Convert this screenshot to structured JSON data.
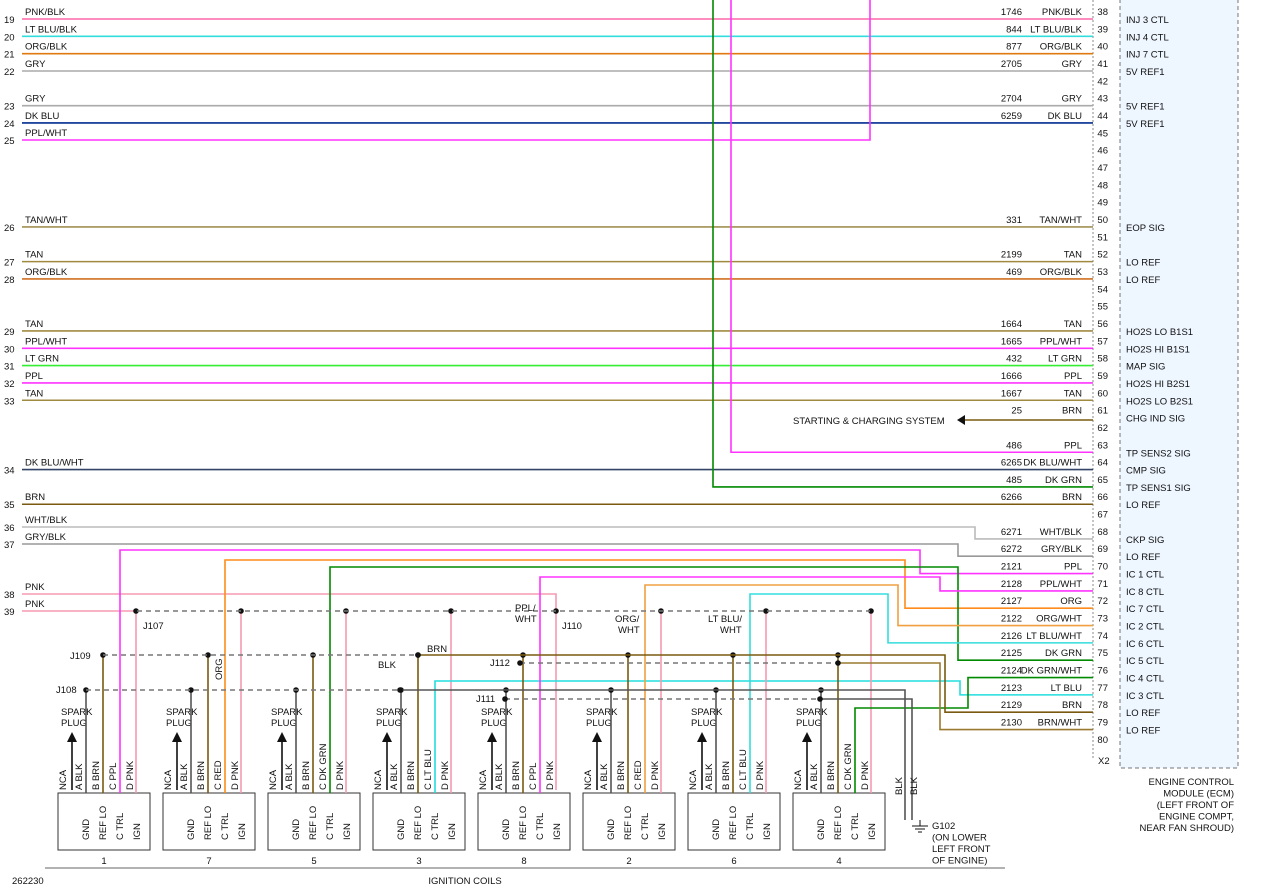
{
  "left_rows": [
    {
      "num": 19,
      "label": "PNK/BLK",
      "color": "#ff66aa"
    },
    {
      "num": 20,
      "label": "LT BLU/BLK",
      "color": "#33dddd"
    },
    {
      "num": 21,
      "label": "ORG/BLK",
      "color": "#e07a10"
    },
    {
      "num": 22,
      "label": "GRY",
      "color": "#aaaaaa"
    },
    {
      "num": 23,
      "label": "GRY",
      "color": "#aaaaaa"
    },
    {
      "num": 24,
      "label": "DK BLU",
      "color": "#002b90"
    },
    {
      "num": 25,
      "label": "PPL/WHT",
      "color": "#ff33ff"
    },
    {
      "num": 26,
      "label": "TAN/WHT",
      "color": "#a09050"
    },
    {
      "num": 27,
      "label": "TAN",
      "color": "#a08a40"
    },
    {
      "num": 28,
      "label": "ORG/BLK",
      "color": "#d07020"
    },
    {
      "num": 29,
      "label": "TAN",
      "color": "#a08a40"
    },
    {
      "num": 30,
      "label": "PPL/WHT",
      "color": "#ff33ff"
    },
    {
      "num": 31,
      "label": "LT GRN",
      "color": "#33ee33"
    },
    {
      "num": 32,
      "label": "PPL",
      "color": "#ff33ff"
    },
    {
      "num": 33,
      "label": "TAN",
      "color": "#a08a40"
    },
    {
      "num": 34,
      "label": "DK BLU/WHT",
      "color": "#334466"
    },
    {
      "num": 35,
      "label": "BRN",
      "color": "#7a5a10"
    },
    {
      "num": 36,
      "label": "WHT/BLK",
      "color": "#bbbbbb"
    },
    {
      "num": 37,
      "label": "GRY/BLK",
      "color": "#999999"
    },
    {
      "num": 38,
      "label": "PNK",
      "color": "#f59ab0"
    },
    {
      "num": 39,
      "label": "PNK",
      "color": "#f59ab0"
    }
  ],
  "ecm_pins": [
    {
      "pin": 38,
      "circuit": 1746,
      "wire": "PNK/BLK",
      "function": "INJ 3 CTL",
      "color": "#ff66aa"
    },
    {
      "pin": 39,
      "circuit": 844,
      "wire": "LT BLU/BLK",
      "function": "INJ 4 CTL",
      "color": "#33dddd"
    },
    {
      "pin": 40,
      "circuit": 877,
      "wire": "ORG/BLK",
      "function": "INJ 7 CTL",
      "color": "#e07a10"
    },
    {
      "pin": 41,
      "circuit": 2705,
      "wire": "GRY",
      "function": "5V REF1",
      "color": "#aaaaaa"
    },
    {
      "pin": 42
    },
    {
      "pin": 43,
      "circuit": 2704,
      "wire": "GRY",
      "function": "5V REF1",
      "color": "#aaaaaa"
    },
    {
      "pin": 44,
      "circuit": 6259,
      "wire": "DK BLU",
      "function": "5V REF1",
      "color": "#002b90"
    },
    {
      "pin": 45
    },
    {
      "pin": 46
    },
    {
      "pin": 47
    },
    {
      "pin": 48
    },
    {
      "pin": 49
    },
    {
      "pin": 50,
      "circuit": 331,
      "wire": "TAN/WHT",
      "function": "EOP SIG",
      "color": "#a09050"
    },
    {
      "pin": 51
    },
    {
      "pin": 52,
      "circuit": 2199,
      "wire": "TAN",
      "function": "LO REF",
      "color": "#a08a40"
    },
    {
      "pin": 53,
      "circuit": 469,
      "wire": "ORG/BLK",
      "function": "LO REF",
      "color": "#d07020"
    },
    {
      "pin": 54
    },
    {
      "pin": 55
    },
    {
      "pin": 56,
      "circuit": 1664,
      "wire": "TAN",
      "function": "HO2S LO B1S1",
      "color": "#a08a40"
    },
    {
      "pin": 57,
      "circuit": 1665,
      "wire": "PPL/WHT",
      "function": "HO2S HI B1S1",
      "color": "#ff33ff"
    },
    {
      "pin": 58,
      "circuit": 432,
      "wire": "LT GRN",
      "function": "MAP SIG",
      "color": "#33ee33"
    },
    {
      "pin": 59,
      "circuit": 1666,
      "wire": "PPL",
      "function": "HO2S HI B2S1",
      "color": "#ff33ff"
    },
    {
      "pin": 60,
      "circuit": 1667,
      "wire": "TAN",
      "function": "HO2S LO B2S1",
      "color": "#a08a40"
    },
    {
      "pin": 61,
      "circuit": 25,
      "wire": "BRN",
      "function": "CHG IND SIG",
      "color": "#7a5a10"
    },
    {
      "pin": 62
    },
    {
      "pin": 63,
      "circuit": 486,
      "wire": "PPL",
      "function": "TP SENS2 SIG",
      "color": "#ff33ff"
    },
    {
      "pin": 64,
      "circuit": 6265,
      "wire": "DK BLU/WHT",
      "function": "CMP SIG",
      "color": "#334466"
    },
    {
      "pin": 65,
      "circuit": 485,
      "wire": "DK GRN",
      "function": "TP SENS1 SIG",
      "color": "#008a00"
    },
    {
      "pin": 66,
      "circuit": 6266,
      "wire": "BRN",
      "function": "LO REF",
      "color": "#7a5a10"
    },
    {
      "pin": 67
    },
    {
      "pin": 68,
      "circuit": 6271,
      "wire": "WHT/BLK",
      "function": "CKP SIG",
      "color": "#bbbbbb"
    },
    {
      "pin": 69,
      "circuit": 6272,
      "wire": "GRY/BLK",
      "function": "LO REF",
      "color": "#999999"
    },
    {
      "pin": 70,
      "circuit": 2121,
      "wire": "PPL",
      "function": "IC 1 CTL",
      "color": "#ff33ff"
    },
    {
      "pin": 71,
      "circuit": 2128,
      "wire": "PPL/WHT",
      "function": "IC 8 CTL",
      "color": "#ff33ff"
    },
    {
      "pin": 72,
      "circuit": 2127,
      "wire": "ORG",
      "function": "IC 7 CTL",
      "color": "#ff8c1a"
    },
    {
      "pin": 73,
      "circuit": 2122,
      "wire": "ORG/WHT",
      "function": "IC 2 CTL",
      "color": "#f0a040"
    },
    {
      "pin": 74,
      "circuit": 2126,
      "wire": "LT BLU/WHT",
      "function": "IC 6 CTL",
      "color": "#33dddd"
    },
    {
      "pin": 75,
      "circuit": 2125,
      "wire": "DK GRN",
      "function": "IC 5 CTL",
      "color": "#008a00"
    },
    {
      "pin": 76,
      "circuit": 2124,
      "wire": "DK GRN/WHT",
      "function": "IC 4 CTL",
      "color": "#008a00"
    },
    {
      "pin": 77,
      "circuit": 2123,
      "wire": "LT BLU",
      "function": "IC 3 CTL",
      "color": "#22dddd"
    },
    {
      "pin": 78,
      "circuit": 2129,
      "wire": "BRN",
      "function": "LO REF",
      "color": "#7a5a10"
    },
    {
      "pin": 79,
      "circuit": 2130,
      "wire": "BRN/WHT",
      "function": "LO REF",
      "color": "#9a7a30"
    },
    {
      "pin": 80
    }
  ],
  "connector_id": "X2",
  "ecm_label": [
    "ENGINE CONTROL",
    "MODULE (ECM)",
    "(LEFT FRONT OF",
    "ENGINE COMPT,",
    "NEAR FAN SHROUD)"
  ],
  "starting_charging": "STARTING & CHARGING SYSTEM",
  "coil_terminals": [
    "GND",
    "REF LO",
    "C TRL",
    "IGN"
  ],
  "spark_plug": [
    "SPARK",
    "PLUG"
  ],
  "nca": "NCA",
  "coils": [
    {
      "number": 1,
      "wires": [
        "A BLK",
        "B BRN",
        "C PPL",
        "D PNK"
      ],
      "ctl_color": "#ff33ff"
    },
    {
      "number": 7,
      "wires": [
        "A BLK",
        "B BRN",
        "C RED",
        "D PNK"
      ],
      "ctl_color": "#ff8c1a"
    },
    {
      "number": 5,
      "wires": [
        "A BLK",
        "B BRN",
        "C DK GRN",
        "D PNK"
      ],
      "ctl_color": "#008a00"
    },
    {
      "number": 3,
      "wires": [
        "A BLK",
        "B BRN",
        "C LT BLU",
        "D PNK"
      ],
      "ctl_color": "#22dddd"
    },
    {
      "number": 8,
      "wires": [
        "A BLK",
        "B BRN",
        "C PPL",
        "D PNK"
      ],
      "ctl_color": "#ff33ff"
    },
    {
      "number": 2,
      "wires": [
        "A BLK",
        "B BRN",
        "C RED",
        "D PNK"
      ],
      "ctl_color": "#f0a040"
    },
    {
      "number": 6,
      "wires": [
        "A BLK",
        "B BRN",
        "C LT BLU",
        "D PNK"
      ],
      "ctl_color": "#33dddd"
    },
    {
      "number": 4,
      "wires": [
        "A BLK",
        "B BRN",
        "C DK GRN",
        "D PNK"
      ],
      "ctl_color": "#008a00"
    }
  ],
  "splices": {
    "j107": "J107",
    "j108": "J108",
    "j109": "J109",
    "j110": "J110",
    "j111": "J111",
    "j112": "J112"
  },
  "wire_notes": {
    "ppl_wht": [
      "PPL/",
      "WHT"
    ],
    "org_wht": [
      "ORG/",
      "WHT"
    ],
    "lt_blu_wht": [
      "LT BLU/",
      "WHT"
    ],
    "org": "ORG",
    "blk": "BLK",
    "brn": "BRN",
    "blk_ground": [
      "BLK",
      "BLK"
    ]
  },
  "ground": [
    "G102",
    "(ON LOWER",
    "LEFT FRONT",
    "OF ENGINE)"
  ],
  "figure_id": "262230",
  "caption": "IGNITION COILS"
}
